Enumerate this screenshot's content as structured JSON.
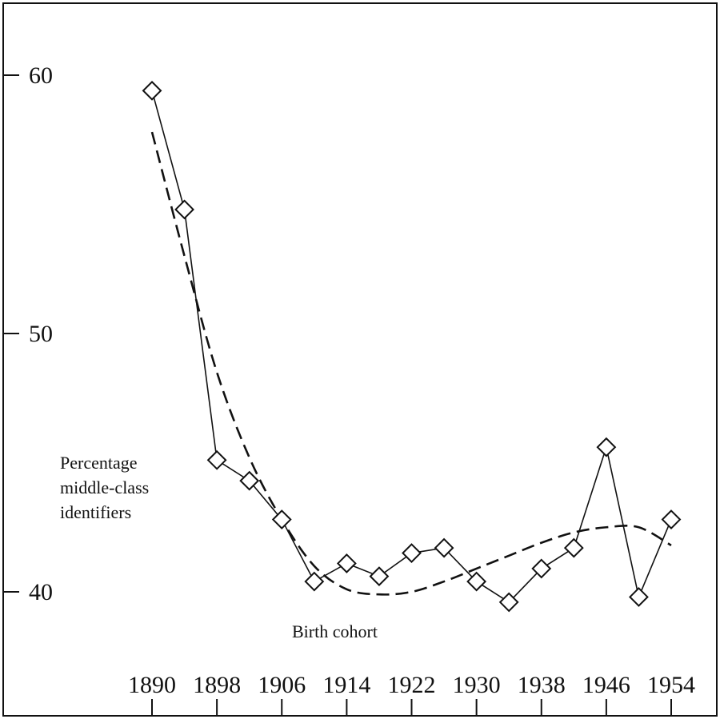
{
  "chart_data": {
    "type": "line",
    "title": "",
    "ylabel": [
      "Percentage",
      "middle-class",
      "identifiers"
    ],
    "xlabel": "Birth cohort",
    "x_ticks": [
      "1890",
      "1898",
      "1906",
      "1914",
      "1922",
      "1930",
      "1938",
      "1946",
      "1954"
    ],
    "y_ticks": [
      "40",
      "50",
      "60"
    ],
    "xlim": [
      1890,
      1954
    ],
    "ylim": [
      40,
      60
    ],
    "grid": false,
    "legend": "none",
    "series": [
      {
        "style": "solid-with-diamond-markers",
        "x": [
          1890,
          1894,
          1898,
          1902,
          1906,
          1910,
          1914,
          1918,
          1922,
          1926,
          1930,
          1934,
          1938,
          1942,
          1946,
          1950,
          1954
        ],
        "values": [
          59.4,
          54.8,
          45.1,
          44.3,
          42.8,
          40.4,
          41.1,
          40.6,
          41.5,
          41.7,
          40.4,
          39.6,
          40.9,
          41.7,
          45.6,
          39.8,
          42.8
        ]
      },
      {
        "style": "dashed-smooth-fit",
        "x": [
          1890,
          1894,
          1898,
          1902,
          1906,
          1910,
          1914,
          1918,
          1922,
          1926,
          1930,
          1934,
          1938,
          1942,
          1946,
          1950,
          1954
        ],
        "values": [
          57.8,
          53.0,
          48.5,
          45.2,
          42.8,
          41.0,
          40.1,
          39.9,
          40.0,
          40.4,
          40.9,
          41.4,
          41.9,
          42.3,
          42.5,
          42.5,
          41.8
        ]
      }
    ]
  }
}
